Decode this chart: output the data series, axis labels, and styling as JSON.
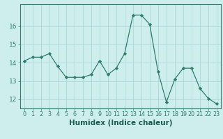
{
  "x": [
    0,
    1,
    2,
    3,
    4,
    5,
    6,
    7,
    8,
    9,
    10,
    11,
    12,
    13,
    14,
    15,
    16,
    17,
    18,
    19,
    20,
    21,
    22,
    23
  ],
  "y": [
    14.1,
    14.3,
    14.3,
    14.5,
    13.8,
    13.2,
    13.2,
    13.2,
    13.35,
    14.1,
    13.35,
    13.7,
    14.5,
    16.6,
    16.6,
    16.1,
    13.5,
    11.85,
    13.1,
    13.7,
    13.7,
    12.6,
    12.05,
    11.75
  ],
  "line_color": "#2e7d6e",
  "marker": "D",
  "marker_size": 2.2,
  "bg_color": "#ceeeed",
  "grid_color": "#aad8d6",
  "xlabel": "Humidex (Indice chaleur)",
  "ylim": [
    11.5,
    17.2
  ],
  "xlim": [
    -0.5,
    23.5
  ],
  "yticks": [
    12,
    13,
    14,
    15,
    16
  ],
  "xticks": [
    0,
    1,
    2,
    3,
    4,
    5,
    6,
    7,
    8,
    9,
    10,
    11,
    12,
    13,
    14,
    15,
    16,
    17,
    18,
    19,
    20,
    21,
    22,
    23
  ],
  "tick_color": "#2e7d6e",
  "label_color": "#1a5c50",
  "xlabel_fontsize": 7.5,
  "ytick_fontsize": 6.5,
  "xtick_fontsize": 5.8,
  "spine_color": "#3a7a70"
}
